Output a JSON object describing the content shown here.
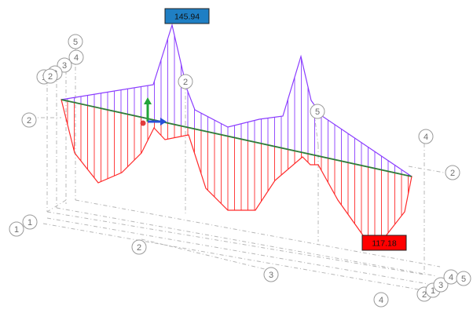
{
  "viewport": {
    "grid_markers": [
      {
        "id": "marker-5-top",
        "label": "5"
      },
      {
        "id": "marker-4-top",
        "label": "4"
      },
      {
        "id": "marker-3-top",
        "label": "3"
      },
      {
        "id": "marker-2-top-a",
        "label": "2"
      },
      {
        "id": "marker-1-top",
        "label": "1"
      },
      {
        "id": "marker-2-top-b",
        "label": "2"
      },
      {
        "id": "marker-2-left",
        "label": "2"
      },
      {
        "id": "marker-2-mid",
        "label": "2"
      },
      {
        "id": "marker-5-mid",
        "label": "5"
      },
      {
        "id": "marker-4-right",
        "label": "4"
      },
      {
        "id": "marker-2-right",
        "label": "2"
      },
      {
        "id": "marker-1-left-a",
        "label": "1"
      },
      {
        "id": "marker-1-left-b",
        "label": "1"
      },
      {
        "id": "marker-2-front",
        "label": "2"
      },
      {
        "id": "marker-3-front",
        "label": "3"
      },
      {
        "id": "marker-4-front",
        "label": "4"
      },
      {
        "id": "marker-2-br-a",
        "label": "2"
      },
      {
        "id": "marker-1-br",
        "label": "1"
      },
      {
        "id": "marker-3-br",
        "label": "3"
      },
      {
        "id": "marker-4-br",
        "label": "4"
      },
      {
        "id": "marker-5-br",
        "label": "5"
      }
    ],
    "max_value_label": "145.94",
    "min_value_label": "117.18",
    "colors": {
      "positive_diagram": "#8a3cff",
      "negative_diagram": "#ff2a2a",
      "beam_axis": "#2f7d3a",
      "max_label_fill": "#1f7fc4",
      "min_label_fill": "#ff0000",
      "axis_x": "#e23b3b",
      "axis_y": "#22a43a",
      "axis_z": "#2b4fd8"
    },
    "axis_icon": {
      "x": "x-axis-arrow",
      "y": "y-axis-arrow",
      "z": "z-axis-arrow"
    }
  }
}
